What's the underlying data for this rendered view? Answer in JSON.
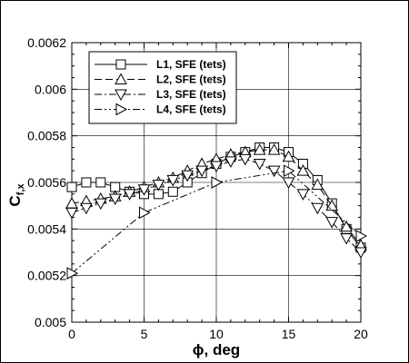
{
  "chart_data": {
    "type": "line",
    "xlabel": "ϕ, deg",
    "ylabel_main": "C",
    "ylabel_sub": "f,x",
    "xlim": [
      0,
      20
    ],
    "ylim": [
      0.005,
      0.0062
    ],
    "xticks": [
      0,
      5,
      10,
      15,
      20
    ],
    "xtick_labels": [
      "0",
      "5",
      "10",
      "15",
      "20"
    ],
    "yticks": [
      0.005,
      0.0052,
      0.0054,
      0.0056,
      0.0058,
      0.006,
      0.0062
    ],
    "ytick_labels": [
      "0.005",
      "0.0052",
      "0.0054",
      "0.0056",
      "0.0058",
      "0.006",
      "0.0062"
    ],
    "grid": true,
    "legend_position": "top-left",
    "series": [
      {
        "name": "L1, SFE (tets)",
        "line_style": "solid",
        "marker": "square",
        "x": [
          0,
          1,
          2,
          3,
          4,
          5,
          6,
          7,
          8,
          9,
          10,
          11,
          12,
          13,
          14,
          15,
          16,
          17,
          18,
          19,
          20
        ],
        "y": [
          0.00558,
          0.0056,
          0.0056,
          0.00558,
          0.00556,
          0.00555,
          0.00555,
          0.00556,
          0.0056,
          0.00564,
          0.00568,
          0.00571,
          0.00573,
          0.00575,
          0.00575,
          0.00573,
          0.00568,
          0.00561,
          0.00551,
          0.0054,
          0.00532
        ]
      },
      {
        "name": "L2, SFE (tets)",
        "line_style": "dashed",
        "marker": "triangle-up",
        "x": [
          0,
          1,
          2,
          3,
          4,
          5,
          6,
          7,
          8,
          9,
          10,
          11,
          12,
          13,
          14,
          15,
          16,
          17,
          18,
          19,
          20
        ],
        "y": [
          0.00551,
          0.00552,
          0.00553,
          0.00554,
          0.00556,
          0.00558,
          0.0056,
          0.00562,
          0.00565,
          0.00568,
          0.0057,
          0.00572,
          0.00573,
          0.00574,
          0.00574,
          0.00571,
          0.00565,
          0.00559,
          0.0055,
          0.00541,
          0.00533
        ]
      },
      {
        "name": "L3, SFE (tets)",
        "line_style": "dashdot",
        "marker": "triangle-down",
        "x": [
          0,
          1,
          2,
          3,
          4,
          5,
          6,
          7,
          8,
          9,
          10,
          11,
          12,
          13,
          14,
          15,
          16,
          17,
          18,
          19,
          20
        ],
        "y": [
          0.00547,
          0.00549,
          0.00551,
          0.00553,
          0.00555,
          0.00557,
          0.00559,
          0.00561,
          0.00563,
          0.00565,
          0.00567,
          0.00569,
          0.0057,
          0.00568,
          0.00565,
          0.0056,
          0.00555,
          0.00549,
          0.00543,
          0.00536,
          0.0053
        ]
      },
      {
        "name": "L4, SFE (tets)",
        "line_style": "dashdotdot",
        "marker": "triangle-right",
        "x": [
          0,
          5,
          10,
          15,
          20
        ],
        "y": [
          0.00521,
          0.00547,
          0.0056,
          0.00565,
          0.00537
        ]
      }
    ]
  }
}
